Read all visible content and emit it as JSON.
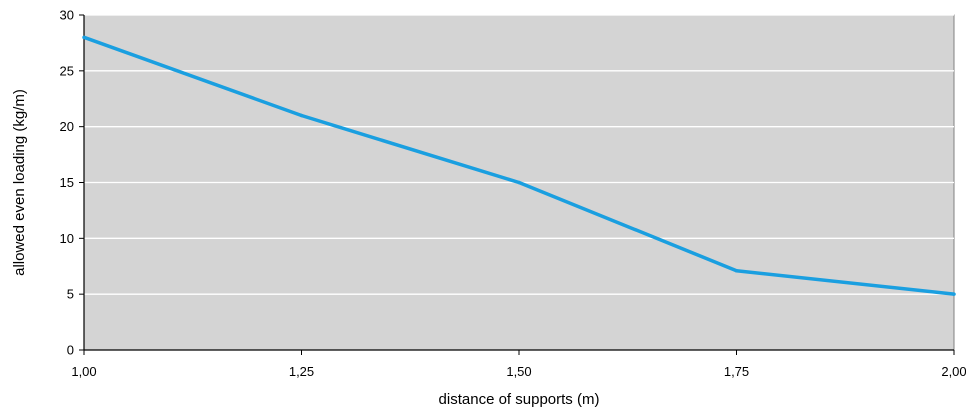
{
  "chart_data": {
    "type": "line",
    "x": [
      1.0,
      1.25,
      1.5,
      1.75,
      2.0
    ],
    "x_tick_labels": [
      "1,00",
      "1,25",
      "1,50",
      "1,75",
      "2,00"
    ],
    "series": [
      {
        "values": [
          28,
          21,
          15,
          7.1,
          5
        ]
      }
    ],
    "xlabel": "distance of supports (m)",
    "ylabel": "allowed even loading (kg/m)",
    "xlim": [
      1.0,
      2.0
    ],
    "ylim": [
      0,
      30
    ],
    "y_ticks": [
      0,
      5,
      10,
      15,
      20,
      25,
      30
    ],
    "grid": "horizontal",
    "legend": "none",
    "colors": {
      "line": "#1a9fe0",
      "plot_background": "#d4d4d4",
      "grid": "#ffffff",
      "axis": "#000000"
    }
  }
}
